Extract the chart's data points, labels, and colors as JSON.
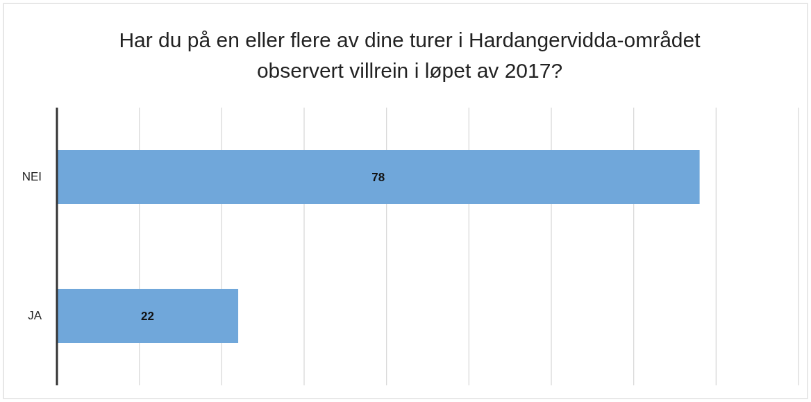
{
  "chart_data": {
    "type": "bar",
    "orientation": "horizontal",
    "title": "Har du på en eller flere av dine turer i Hardangervidda-området observert villrein i løpet av 2017?",
    "categories": [
      "NEI",
      "JA"
    ],
    "values": [
      78,
      22
    ],
    "color": "#70a7da",
    "data_labels": true,
    "xlim": [
      0,
      90
    ],
    "xticks": [
      {
        "value": 0,
        "label": null
      },
      {
        "value": 10,
        "label": null
      },
      {
        "value": 20,
        "label": null
      },
      {
        "value": 30,
        "label": null
      },
      {
        "value": 40,
        "label": null
      },
      {
        "value": 50,
        "label": null
      },
      {
        "value": 60,
        "label": null
      },
      {
        "value": 70,
        "label": null
      },
      {
        "value": 80,
        "label": null
      },
      {
        "value": 90,
        "label": null
      }
    ],
    "grid": "x",
    "tick_labels": "y"
  }
}
